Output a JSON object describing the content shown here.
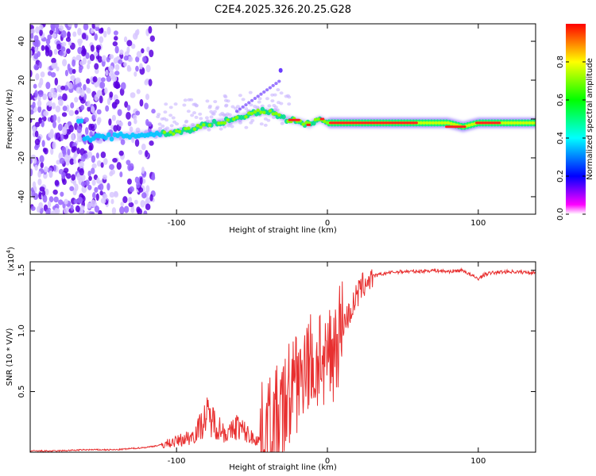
{
  "title": "C2E4.2025.326.20.25.G28",
  "chart_data": [
    {
      "type": "heatmap",
      "xlabel": "Height of straight line (km)",
      "ylabel": "Frequency (Hz)",
      "xlim": [
        -197,
        138
      ],
      "ylim": [
        -49,
        49
      ],
      "xticks": [
        -100,
        0,
        100
      ],
      "yticks": [
        -40,
        -20,
        0,
        20,
        40
      ],
      "colorbar": {
        "label": "Normalized spectral amplitude",
        "range": [
          0,
          1
        ],
        "ticks": [
          "0.0",
          "0.2",
          "0.4",
          "0.6",
          "0.8"
        ],
        "colors": [
          "#ff00ff",
          "#0000ff",
          "#00ffff",
          "#00ff00",
          "#ffff00",
          "#ff0000"
        ]
      },
      "ridge": {
        "description_points_x": [
          -162,
          -140,
          -120,
          -100,
          -80,
          -60,
          -45,
          -35,
          -28,
          -20,
          -12,
          -5,
          0,
          20,
          40,
          60,
          80,
          90,
          100,
          138
        ],
        "description_points_y": [
          -10,
          -9,
          -8,
          -7,
          -3,
          0,
          4,
          3,
          0,
          -1,
          -3,
          0,
          -2,
          -2,
          -2,
          -2,
          -2,
          -4,
          -2,
          -2
        ]
      }
    },
    {
      "type": "line",
      "xlabel": "Height of straight line (km)",
      "ylabel": "SNR (10 * V/V)",
      "multiplier_label": "(x10",
      "multiplier_exp": "4",
      "xlim": [
        -197,
        138
      ],
      "ylim": [
        0,
        1.57
      ],
      "xticks": [
        -100,
        0,
        100
      ],
      "yticks": [
        0.5,
        1.0,
        1.5
      ],
      "ytick_labels": [
        "0.5",
        "1.0",
        "1.5"
      ],
      "series": [
        {
          "name": "SNR",
          "color": "#e83030",
          "x": [
            -197,
            -180,
            -160,
            -140,
            -120,
            -110,
            -100,
            -95,
            -90,
            -85,
            -80,
            -75,
            -70,
            -65,
            -60,
            -55,
            -50,
            -45,
            -40,
            -35,
            -30,
            -25,
            -22,
            -20,
            -18,
            -15,
            -12,
            -10,
            -8,
            -5,
            -2,
            0,
            2,
            5,
            8,
            10,
            15,
            20,
            25,
            30,
            40,
            50,
            60,
            70,
            80,
            90,
            95,
            100,
            105,
            110,
            120,
            138
          ],
          "y": [
            0.01,
            0.01,
            0.02,
            0.02,
            0.04,
            0.06,
            0.09,
            0.11,
            0.13,
            0.2,
            0.3,
            0.25,
            0.18,
            0.15,
            0.22,
            0.17,
            0.12,
            0.1,
            0.2,
            0.25,
            0.3,
            0.5,
            0.85,
            0.6,
            0.55,
            0.85,
            0.7,
            0.8,
            0.6,
            0.9,
            0.5,
            0.85,
            0.8,
            0.9,
            1.0,
            1.05,
            1.15,
            1.3,
            1.4,
            1.45,
            1.48,
            1.49,
            1.49,
            1.5,
            1.49,
            1.5,
            1.46,
            1.43,
            1.47,
            1.48,
            1.49,
            1.48
          ]
        }
      ]
    }
  ]
}
